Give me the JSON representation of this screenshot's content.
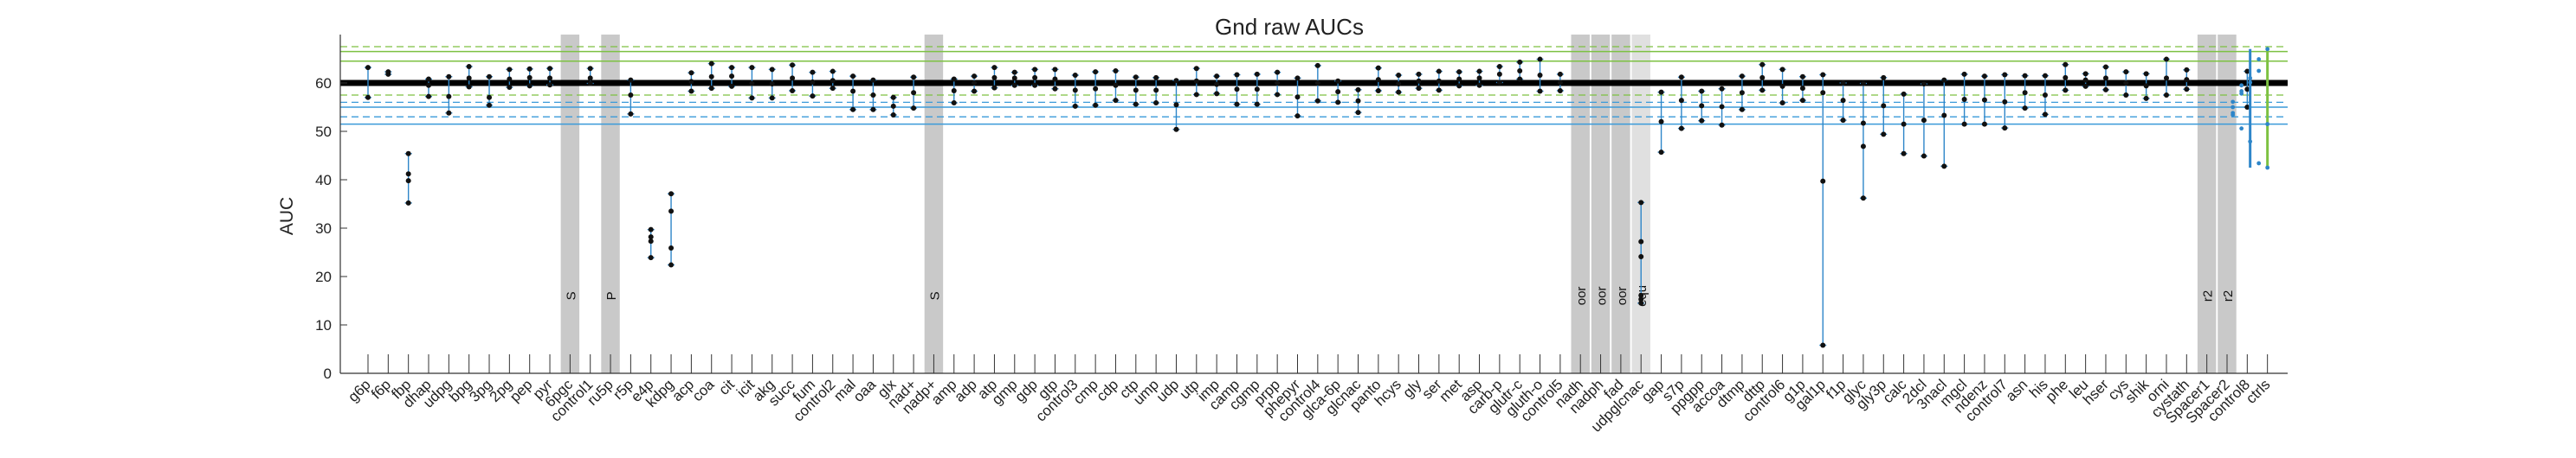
{
  "chart_data": {
    "type": "errorbar-scatter",
    "title": "Gnd raw AUCs",
    "ylabel": "AUC",
    "ylim": [
      0,
      70
    ],
    "yticks": [
      0,
      10,
      20,
      30,
      40,
      50,
      60
    ],
    "grid": false,
    "reference_lines": {
      "mean": 60,
      "green_solid": [
        64.5,
        66.5
      ],
      "green_dashed": [
        57.5,
        67.5
      ],
      "blue_solid": [
        51.5,
        55
      ],
      "blue_dashed": [
        53,
        56
      ]
    },
    "categories": [
      "g6p",
      "f6p",
      "fbp",
      "dhap",
      "udpg",
      "bpg",
      "3pg",
      "2pg",
      "pep",
      "pyr",
      "6pgc",
      "control1",
      "ru5p",
      "r5p",
      "e4p",
      "kdpg",
      "acp",
      "coa",
      "cit",
      "icit",
      "akg",
      "succ",
      "fum",
      "control2",
      "mal",
      "oaa",
      "glx",
      "nad+",
      "nadp+",
      "amp",
      "adp",
      "atp",
      "gmp",
      "gdp",
      "gtp",
      "control3",
      "cmp",
      "cdp",
      "ctp",
      "ump",
      "udp",
      "utp",
      "imp",
      "camp",
      "cgmp",
      "prpp",
      "phepyr",
      "control4",
      "glca-6p",
      "glcnac",
      "panto",
      "hcys",
      "gly",
      "ser",
      "met",
      "asp",
      "carb-p",
      "glutr-c",
      "gluth-o",
      "control5",
      "nadh",
      "nadph",
      "fad",
      "udpglcnac",
      "gap",
      "s7p",
      "ppgpp",
      "accoa",
      "dtmp",
      "dttp",
      "control6",
      "g1p",
      "gal1p",
      "f1p",
      "glyc",
      "gly3p",
      "calc",
      "2dcl",
      "3nacl",
      "mgcl",
      "ndenz",
      "control7",
      "asn",
      "his",
      "phe",
      "leu",
      "hser",
      "cys",
      "shik",
      "orni",
      "cystath",
      "Spacer1",
      "Spacer2",
      "control8",
      "ctrls"
    ],
    "band_labels": {
      "6pgc": "S",
      "ru5p": "P",
      "nadp+": "S",
      "nadh": "oor",
      "nadph": "oor",
      "fad": "oor",
      "udpglcnac": "equ",
      "Spacer1": "r2",
      "Spacer2": "r2"
    },
    "dark_bands": [
      "6pgc",
      "ru5p",
      "nadp+",
      "nadh",
      "nadph",
      "fad",
      "Spacer1",
      "Spacer2"
    ],
    "light_bands": [
      "udpglcnac"
    ],
    "values": {
      "g6p": [
        57.0,
        63.2
      ],
      "f6p": [
        61.8,
        62.3
      ],
      "fbp": [
        35.2,
        45.4,
        41.2,
        39.8
      ],
      "dhap": [
        57.2,
        60.8,
        59.5
      ],
      "udpg": [
        53.8,
        61.3,
        57.2
      ],
      "bpg": [
        59.2,
        63.4,
        61.0
      ],
      "3pg": [
        55.4,
        61.3,
        57.0
      ],
      "2pg": [
        59.1,
        62.8,
        60.8
      ],
      "pep": [
        59.4,
        62.9,
        61.1
      ],
      "pyr": [
        59.6,
        63.0,
        61.0
      ],
      "6pgc": [],
      "control1": [
        59.9,
        63.0,
        61.0
      ],
      "ru5p": [],
      "r5p": [
        53.6,
        60.6,
        57.5
      ],
      "e4p": [
        23.9,
        29.7,
        27.3,
        28.2
      ],
      "kdpg": [
        22.4,
        37.1,
        33.5,
        25.9
      ],
      "acp": [
        58.3,
        62.1,
        60.3
      ],
      "coa": [
        58.9,
        64.0,
        61.3
      ],
      "cit": [
        59.3,
        63.2,
        61.4
      ],
      "icit": [
        56.9,
        63.2,
        59.9
      ],
      "akg": [
        56.9,
        62.8,
        59.8
      ],
      "succ": [
        58.4,
        63.7,
        61.0
      ],
      "fum": [
        57.3,
        62.2,
        60.2
      ],
      "control2": [
        58.9,
        62.4,
        60.5
      ],
      "mal": [
        54.5,
        61.4,
        58.3
      ],
      "oaa": [
        54.5,
        60.6,
        57.5
      ],
      "glx": [
        53.4,
        57.0,
        55.2
      ],
      "nad+": [
        54.8,
        61.2,
        58.0
      ],
      "nadp+": [],
      "amp": [
        55.9,
        60.8,
        58.4
      ],
      "adp": [
        58.3,
        61.4,
        60.0
      ],
      "atp": [
        59.0,
        63.2,
        61.1
      ],
      "gmp": [
        59.5,
        62.2,
        61.0
      ],
      "gdp": [
        59.5,
        62.8,
        61.1
      ],
      "gtp": [
        58.8,
        62.8,
        60.8
      ],
      "control3": [
        55.2,
        61.6,
        58.5
      ],
      "cmp": [
        55.4,
        62.3,
        58.8
      ],
      "cdp": [
        56.4,
        62.5,
        59.5
      ],
      "ctp": [
        55.6,
        61.2,
        58.5
      ],
      "ump": [
        55.9,
        61.1,
        58.5
      ],
      "udp": [
        50.4,
        60.5,
        55.5
      ],
      "utp": [
        57.6,
        63.0,
        60.4
      ],
      "imp": [
        57.8,
        61.4,
        59.7
      ],
      "camp": [
        55.6,
        61.7,
        58.7
      ],
      "cgmp": [
        55.6,
        61.8,
        58.7
      ],
      "prpp": [
        57.6,
        62.2,
        60.0
      ],
      "phepyr": [
        53.2,
        61.0,
        57.1
      ],
      "control4": [
        56.3,
        63.6,
        60.0
      ],
      "glca-6p": [
        56.0,
        60.4,
        58.2
      ],
      "glcnac": [
        53.9,
        58.6,
        56.3
      ],
      "panto": [
        58.4,
        63.1,
        60.7
      ],
      "hcys": [
        58.1,
        61.6,
        59.8
      ],
      "gly": [
        58.9,
        61.8,
        60.4
      ],
      "ser": [
        58.5,
        62.4,
        60.4
      ],
      "met": [
        59.4,
        62.3,
        60.8
      ],
      "asp": [
        59.5,
        62.4,
        61.0
      ],
      "carb-p": [
        60.1,
        63.4,
        61.8
      ],
      "glutr-c": [
        60.8,
        64.3,
        62.5
      ],
      "gluth-o": [
        58.3,
        64.9,
        61.6
      ],
      "control5": [
        58.4,
        61.8,
        60.1
      ],
      "nadh": [],
      "nadph": [],
      "fad": [],
      "udpglcnac": [
        14.5,
        35.3,
        27.2,
        24.1,
        16.1,
        15.3
      ],
      "gap": [
        45.7,
        58.1,
        52.0
      ],
      "s7p": [
        50.6,
        61.2,
        56.4
      ],
      "ppgpp": [
        52.2,
        58.3,
        55.3
      ],
      "accoa": [
        51.3,
        58.8,
        55.1
      ],
      "dtmp": [
        54.5,
        61.4,
        58.0
      ],
      "dttp": [
        58.5,
        63.8,
        61.1
      ],
      "control6": [
        55.9,
        62.8,
        59.3
      ],
      "g1p": [
        56.4,
        61.3,
        58.9
      ],
      "gal1p": [
        5.8,
        61.7,
        39.7,
        58.0
      ],
      "f1p": [
        52.3,
        60.0,
        56.4
      ],
      "glyc": [
        36.2,
        59.9,
        46.9,
        51.7
      ],
      "gly3p": [
        49.4,
        61.1,
        55.3
      ],
      "calc": [
        45.4,
        57.7,
        51.5
      ],
      "2dcl": [
        44.9,
        59.8,
        52.3
      ],
      "3nacl": [
        42.8,
        60.6,
        53.3
      ],
      "mgcl": [
        51.5,
        61.8,
        56.6
      ],
      "ndenz": [
        51.5,
        61.4,
        56.5
      ],
      "control7": [
        50.7,
        61.7,
        56.1
      ],
      "asn": [
        54.8,
        61.5,
        58.0
      ],
      "his": [
        53.5,
        61.5,
        57.5
      ],
      "phe": [
        58.5,
        63.8,
        61.1
      ],
      "leu": [
        59.3,
        61.9,
        60.6
      ],
      "hser": [
        58.6,
        63.3,
        61.0
      ],
      "cys": [
        57.5,
        62.3,
        60.0
      ],
      "shik": [
        56.8,
        61.9,
        59.4
      ],
      "orni": [
        57.5,
        64.9,
        61.0
      ],
      "cystath": [
        58.7,
        62.7,
        60.7
      ],
      "Spacer1": [],
      "Spacer2": [],
      "control8": [
        55.0,
        62.4,
        58.7
      ],
      "ctrls": [
        53.4,
        57.8,
        60.1,
        62.5,
        51.5,
        55.0,
        58.3,
        47.9,
        43.4,
        42.5,
        56.1,
        59.5,
        61.0,
        64.9,
        67.0,
        53.8,
        50.6
      ]
    },
    "colors": {
      "points": "#111111",
      "errorbar": "#2e86c9",
      "mean_line": "#000000",
      "green": "#7dc142",
      "blue": "#3a9ad9",
      "band_dark": "#c9c9c9",
      "band_light": "#e0e0e0"
    }
  }
}
